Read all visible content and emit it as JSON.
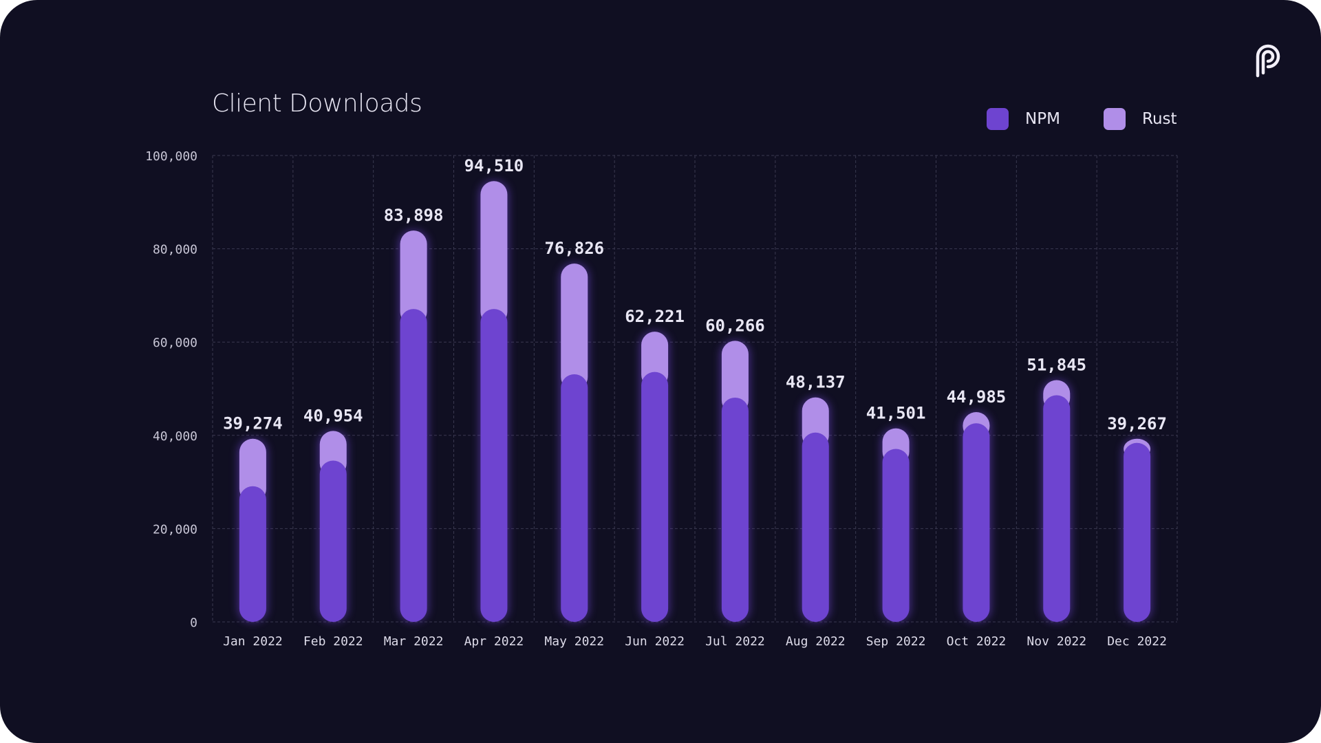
{
  "colors": {
    "background": "#100f22",
    "npm": "#6e44d0",
    "rust": "#b08ee8",
    "text": "#e8e6f3",
    "grid": "#3a3950"
  },
  "logo_icon": "pyth-logo-icon",
  "chart_data": {
    "type": "bar",
    "stacked": true,
    "title": "Client Downloads",
    "xlabel": "",
    "ylabel": "",
    "ylim": [
      0,
      100000
    ],
    "y_ticks": [
      "0",
      "20,000",
      "40,000",
      "60,000",
      "80,000",
      "100,000"
    ],
    "grid": true,
    "legend_position": "top-right",
    "categories": [
      "Jan 2022",
      "Feb 2022",
      "Mar 2022",
      "Apr 2022",
      "May 2022",
      "Jun 2022",
      "Jul 2022",
      "Aug 2022",
      "Sep 2022",
      "Oct 2022",
      "Nov 2022",
      "Dec 2022"
    ],
    "totals": [
      "39,274",
      "40,954",
      "83,898",
      "94,510",
      "76,826",
      "62,221",
      "60,266",
      "48,137",
      "41,501",
      "44,985",
      "51,845",
      "39,267"
    ],
    "series": [
      {
        "name": "NPM",
        "values": [
          28500,
          34000,
          66500,
          66500,
          52500,
          53000,
          47500,
          40000,
          36500,
          42000,
          48000,
          37800
        ]
      },
      {
        "name": "Rust",
        "values": [
          10774,
          6954,
          17398,
          28010,
          24326,
          9221,
          12766,
          8137,
          5001,
          2985,
          3845,
          1467
        ]
      }
    ]
  }
}
